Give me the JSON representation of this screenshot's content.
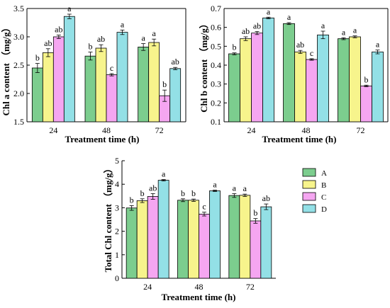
{
  "colors": {
    "A": "#7ccd8e",
    "B": "#f7f48c",
    "C": "#f5a6f1",
    "D": "#93e0e6"
  },
  "legend": {
    "entries": [
      "A",
      "B",
      "C",
      "D"
    ]
  },
  "chart_data": [
    {
      "type": "bar",
      "id": "chla",
      "xlabel": "Treatment time (h)",
      "ylabel": "Chl a content （mg/g）",
      "categories": [
        "24",
        "48",
        "72"
      ],
      "ylim": [
        1.5,
        3.5
      ],
      "yticks": [
        1.5,
        2.0,
        2.5,
        3.0,
        3.5
      ],
      "ytick_labels": [
        "1.5",
        "2.0",
        "2.5",
        "3.0",
        "3.5"
      ],
      "series": [
        {
          "name": "A",
          "values": [
            2.45,
            2.66,
            2.82
          ],
          "errors": [
            0.08,
            0.07,
            0.06
          ],
          "labels": [
            "b",
            "b",
            "a"
          ]
        },
        {
          "name": "B",
          "values": [
            2.72,
            2.8,
            2.9
          ],
          "errors": [
            0.07,
            0.06,
            0.06
          ],
          "labels": [
            "ab",
            "ab",
            "a"
          ]
        },
        {
          "name": "C",
          "values": [
            3.0,
            2.33,
            1.96
          ],
          "errors": [
            0.03,
            0.02,
            0.1
          ],
          "labels": [
            "ab",
            "c",
            "b"
          ]
        },
        {
          "name": "D",
          "values": [
            3.36,
            3.08,
            2.44
          ],
          "errors": [
            0.04,
            0.04,
            0.02
          ],
          "labels": [
            "a",
            "a",
            "ab"
          ]
        }
      ]
    },
    {
      "type": "bar",
      "id": "chlb",
      "xlabel": "Treatment time (h)",
      "ylabel": "Chl b content （mg/g）",
      "categories": [
        "24",
        "48",
        "72"
      ],
      "ylim": [
        0.1,
        0.7
      ],
      "yticks": [
        0.1,
        0.2,
        0.3,
        0.4,
        0.5,
        0.6,
        0.7
      ],
      "ytick_labels": [
        "0.1",
        "0.2",
        "0.3",
        "0.4",
        "0.5",
        "0.6",
        "0.7"
      ],
      "series": [
        {
          "name": "A",
          "values": [
            0.46,
            0.62,
            0.54
          ],
          "errors": [
            0.005,
            0.005,
            0.005
          ],
          "labels": [
            "b",
            "a",
            "a"
          ]
        },
        {
          "name": "B",
          "values": [
            0.54,
            0.47,
            0.55
          ],
          "errors": [
            0.01,
            0.008,
            0.005
          ],
          "labels": [
            "ab",
            "ab",
            "a"
          ]
        },
        {
          "name": "C",
          "values": [
            0.57,
            0.43,
            0.29
          ],
          "errors": [
            0.008,
            0.004,
            0.004
          ],
          "labels": [
            "ab",
            "c",
            "b"
          ]
        },
        {
          "name": "D",
          "values": [
            0.65,
            0.56,
            0.47
          ],
          "errors": [
            0.004,
            0.02,
            0.01
          ],
          "labels": [
            "a",
            "a",
            "a"
          ]
        }
      ]
    },
    {
      "type": "bar",
      "id": "total",
      "xlabel": "Treatment time (h)",
      "ylabel": "Total Chl content （mg/g）",
      "categories": [
        "24",
        "48",
        "72"
      ],
      "ylim": [
        0,
        5
      ],
      "yticks": [
        0,
        1,
        2,
        3,
        4,
        5
      ],
      "ytick_labels": [
        "0",
        "1",
        "2",
        "3",
        "4",
        "5"
      ],
      "series": [
        {
          "name": "A",
          "values": [
            2.99,
            3.32,
            3.52
          ],
          "errors": [
            0.1,
            0.06,
            0.08
          ],
          "labels": [
            "b",
            "b",
            "a"
          ]
        },
        {
          "name": "B",
          "values": [
            3.3,
            3.32,
            3.53
          ],
          "errors": [
            0.08,
            0.05,
            0.05
          ],
          "labels": [
            "b",
            "b",
            "a"
          ]
        },
        {
          "name": "C",
          "values": [
            3.48,
            2.73,
            2.44
          ],
          "errors": [
            0.12,
            0.08,
            0.1
          ],
          "labels": [
            "ab",
            "c",
            "b"
          ]
        },
        {
          "name": "D",
          "values": [
            4.17,
            3.72,
            3.04
          ],
          "errors": [
            0.03,
            0.03,
            0.12
          ],
          "labels": [
            "a",
            "a",
            "ab"
          ]
        }
      ]
    }
  ]
}
